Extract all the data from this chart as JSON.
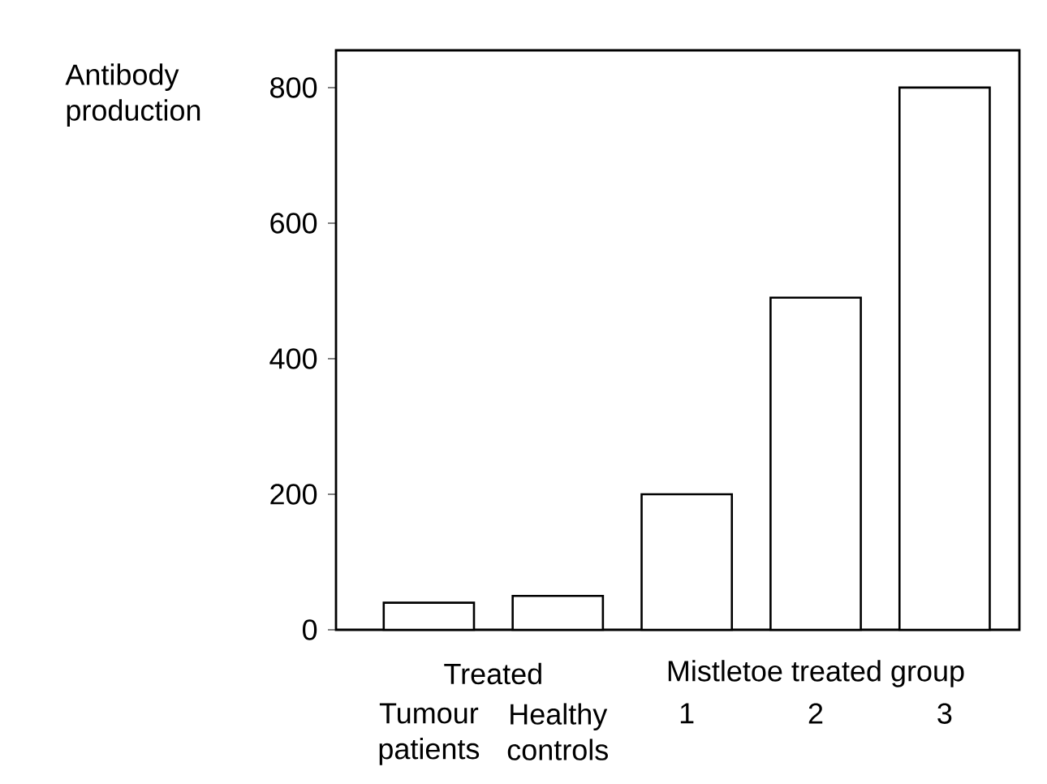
{
  "chart_data": {
    "type": "bar",
    "ylabel": "Antibody production",
    "categories": [
      "Tumour patients",
      "Healthy controls",
      "1",
      "2",
      "3"
    ],
    "values": [
      40,
      50,
      200,
      490,
      800
    ],
    "color": "#ffffff",
    "ylim": [
      0,
      855
    ],
    "yticks": [
      0,
      200,
      400,
      600,
      800
    ],
    "grid": false,
    "annotations": [
      "Treated",
      "Mistletoe treated group"
    ]
  }
}
